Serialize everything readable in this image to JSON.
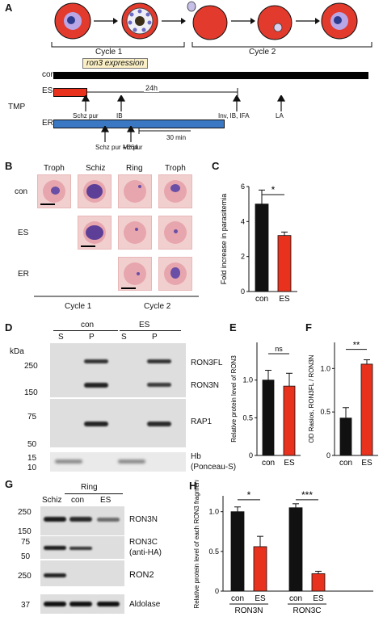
{
  "panels": {
    "A": {
      "label": "A",
      "cycle1": "Cycle 1",
      "cycle2": "Cycle 2",
      "ron3_expression": "ron3 expression",
      "tmp": "TMP",
      "rows": [
        "con",
        "ES",
        "ER"
      ],
      "time_24h": "24h",
      "time_30min": "30 min",
      "arrows": [
        "Schz pur",
        "IB",
        "Inv, IB, IFA",
        "LA",
        "Schz pur\n+E64",
        "Mz pur"
      ]
    },
    "B": {
      "label": "B",
      "columns": [
        "Troph",
        "Schiz",
        "Ring",
        "Troph"
      ],
      "rows": [
        "con",
        "ES",
        "ER"
      ],
      "cycle1": "Cycle 1",
      "cycle2": "Cycle 2"
    },
    "C": {
      "label": "C",
      "chart_data": {
        "type": "bar",
        "categories": [
          "con",
          "ES"
        ],
        "values": [
          5.0,
          3.2
        ],
        "errors": [
          0.8,
          0.2
        ],
        "ylabel": "Fold increase in parasitemia",
        "ylim": [
          0,
          6
        ],
        "yticks": [
          "0",
          "2",
          "4",
          "6"
        ],
        "significance": "*",
        "colors": [
          "#111111",
          "#e8321e"
        ]
      }
    },
    "D": {
      "label": "D",
      "kda": "kDa",
      "groups": [
        "con",
        "ES"
      ],
      "lanes": [
        "S",
        "P",
        "S",
        "P"
      ],
      "markers_top": [
        "250",
        "150"
      ],
      "markers_mid": [
        "75",
        "50"
      ],
      "markers_bot": [
        "15",
        "10"
      ],
      "bands": [
        "RON3FL",
        "RON3N",
        "RAP1",
        "Hb",
        "(Ponceau-S)"
      ]
    },
    "E": {
      "label": "E",
      "chart_data": {
        "type": "bar",
        "categories": [
          "con",
          "ES"
        ],
        "values": [
          1.0,
          0.92
        ],
        "errors": [
          0.13,
          0.17
        ],
        "ylabel": "Relative protein level of RON3",
        "ylim": [
          0,
          1.5
        ],
        "yticks": [
          "0",
          "0.5",
          "1.0"
        ],
        "significance": "ns",
        "colors": [
          "#111111",
          "#e8321e"
        ]
      }
    },
    "F": {
      "label": "F",
      "chart_data": {
        "type": "bar",
        "categories": [
          "con",
          "ES"
        ],
        "values": [
          0.43,
          1.05
        ],
        "errors": [
          0.12,
          0.05
        ],
        "ylabel": "OD Rasios, RON3FL / RON3N",
        "ylim": [
          0,
          1.3
        ],
        "yticks": [
          "0",
          "0.5",
          "1.0"
        ],
        "significance": "**",
        "colors": [
          "#111111",
          "#e8321e"
        ]
      }
    },
    "G": {
      "label": "G",
      "schiz": "Schiz",
      "ring": "Ring",
      "lanes": [
        "con",
        "ES"
      ],
      "markers": [
        "250",
        "150",
        "75",
        "50",
        "250",
        "37"
      ],
      "bands": [
        "RON3N",
        "RON3C",
        "(anti-HA)",
        "RON2",
        "Aldolase"
      ]
    },
    "H": {
      "label": "H",
      "chart_data": {
        "type": "bar",
        "groups": [
          "RON3N",
          "RON3C"
        ],
        "categories": [
          "con",
          "ES",
          "con",
          "ES"
        ],
        "values": [
          1.0,
          0.56,
          1.05,
          0.22
        ],
        "errors": [
          0.06,
          0.13,
          0.05,
          0.03
        ],
        "ylabel": "Relative protein level of each RON3 fragment",
        "ylim": [
          0,
          1.2
        ],
        "yticks": [
          "0",
          "0.5",
          "1.0"
        ],
        "significance": [
          "*",
          "***"
        ],
        "colors": [
          "#111111",
          "#e8321e",
          "#111111",
          "#e8321e"
        ]
      }
    }
  }
}
